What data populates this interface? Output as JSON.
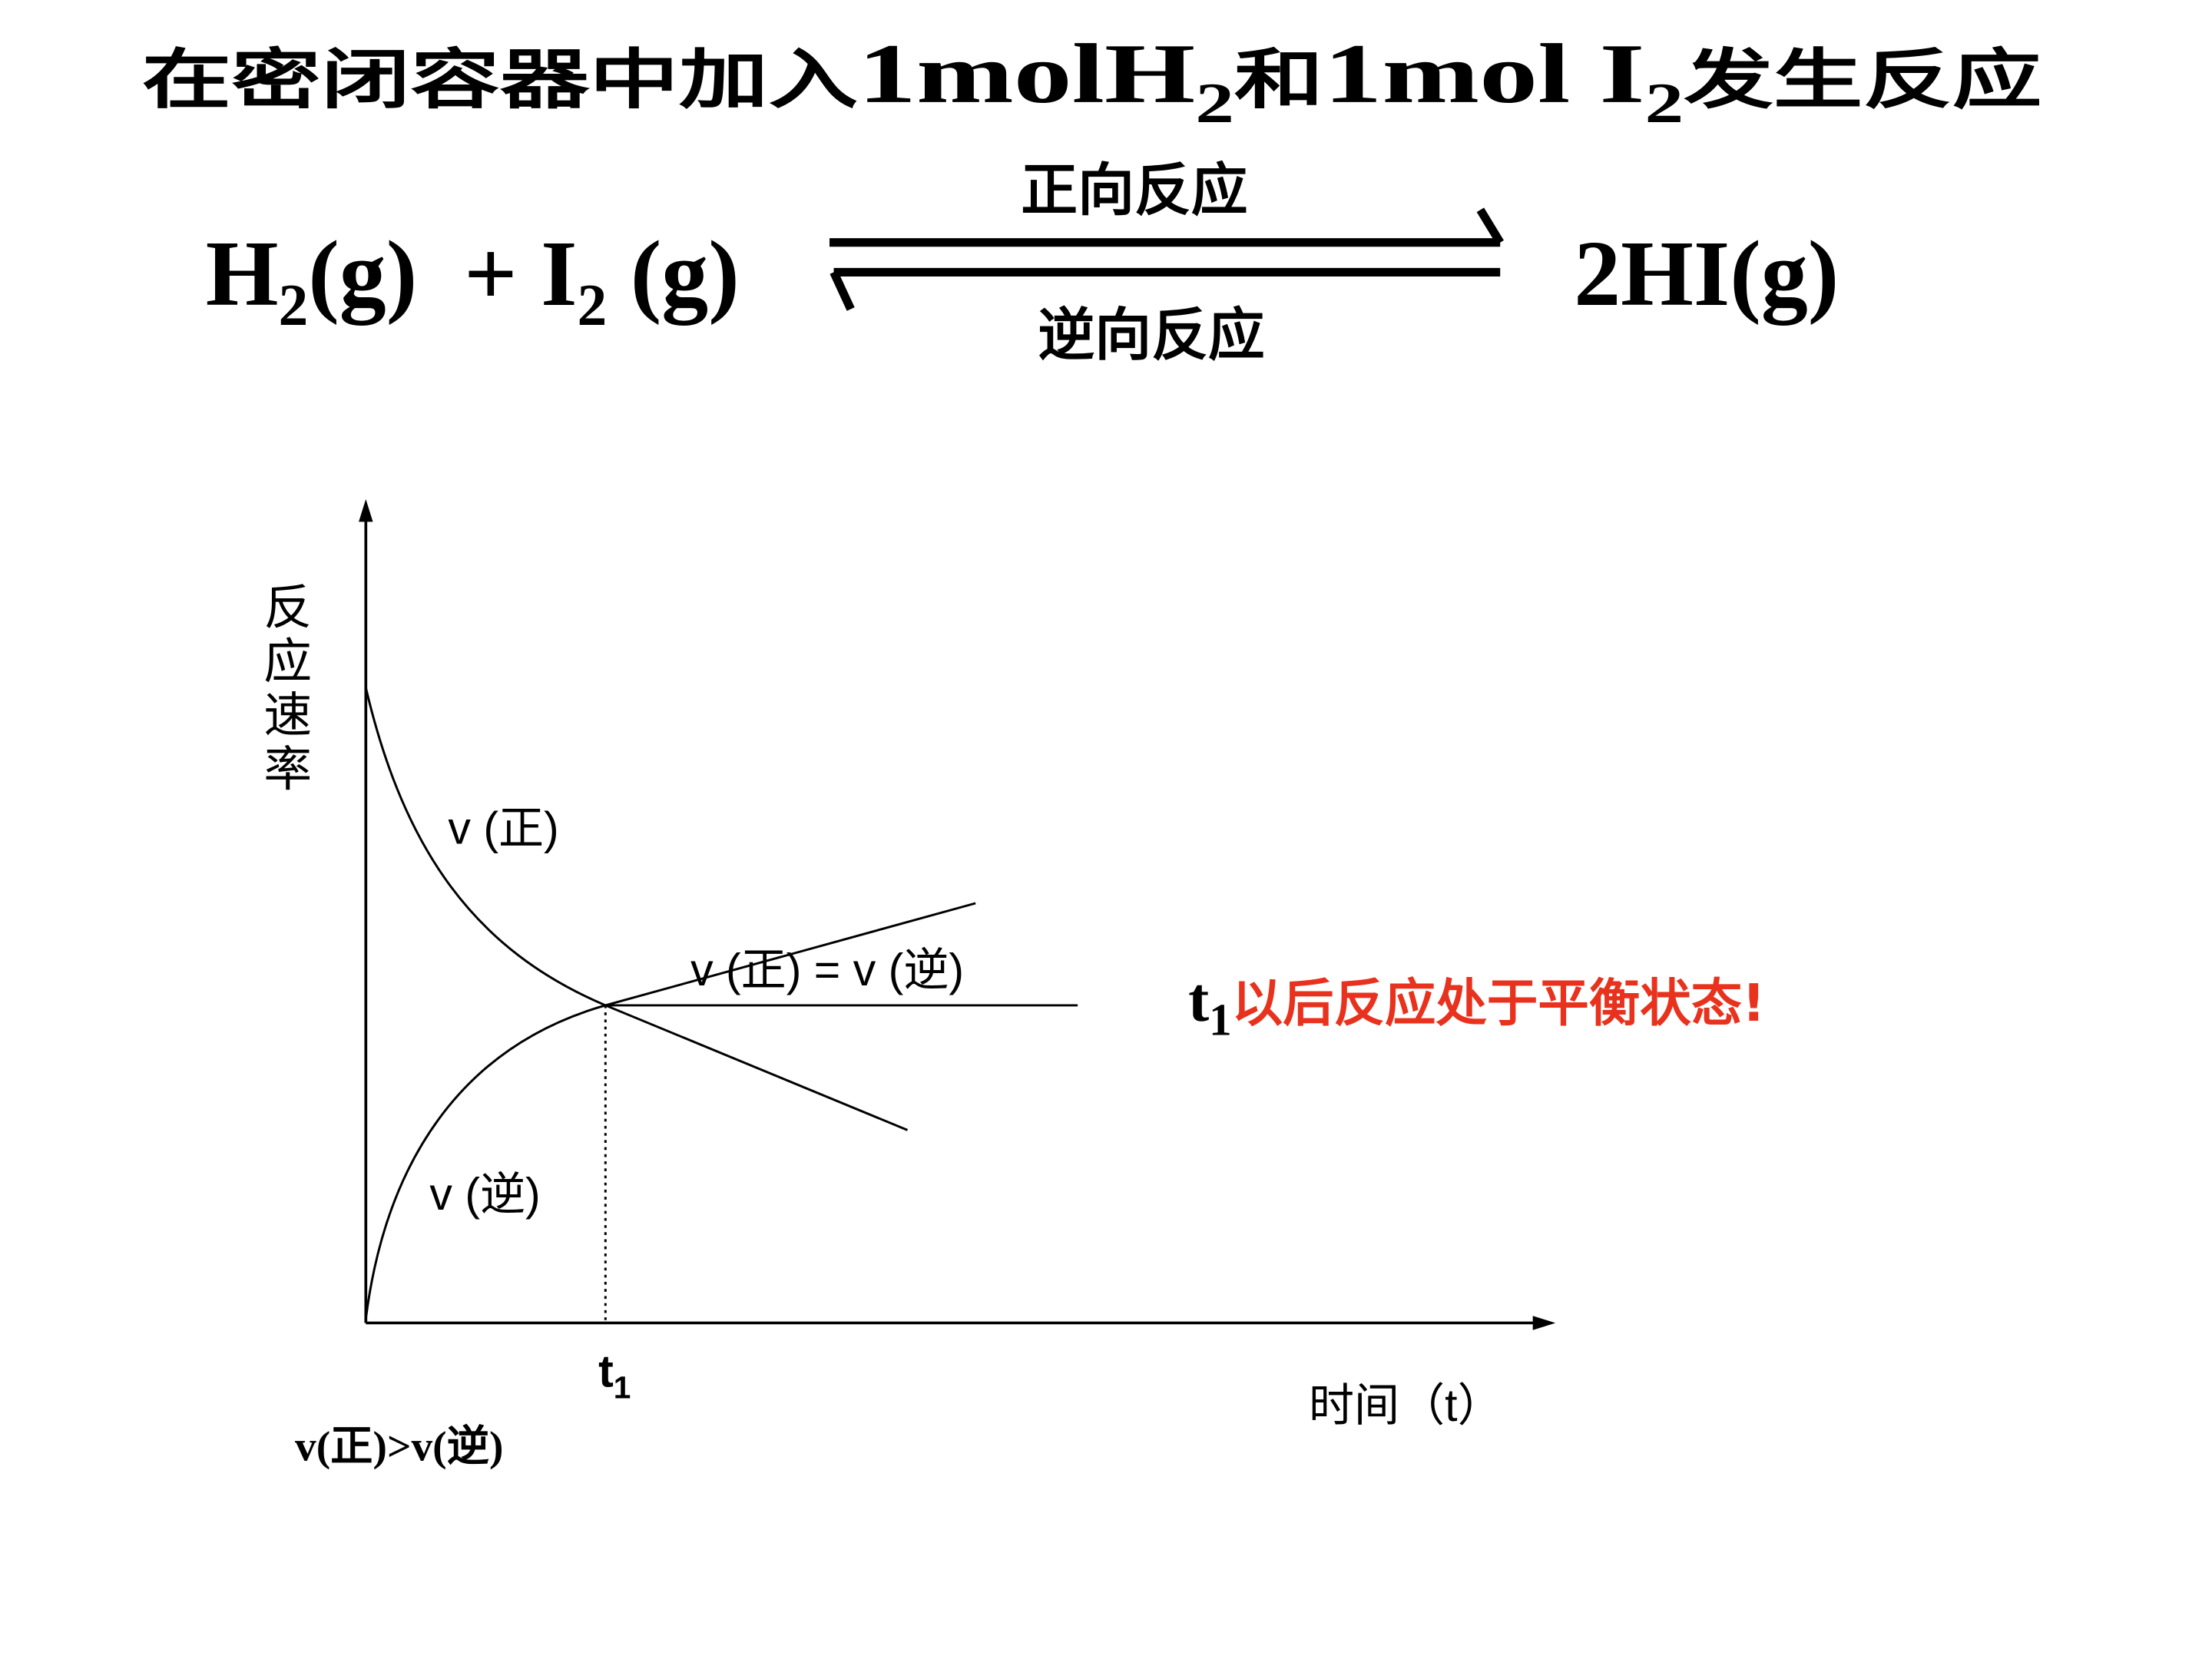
{
  "title": {
    "parts": [
      "在密闭容器中加入",
      "1molH",
      "2",
      "和",
      "1mol I",
      "2",
      "发生反应"
    ]
  },
  "equation": {
    "reactants": [
      "H",
      "2",
      "(g)  + I",
      "2",
      " (g)"
    ],
    "product": "2HI(g)",
    "forward": "正向反应",
    "reverse": "逆向反应"
  },
  "graph": {
    "y_axis_label": [
      "反",
      "应",
      "速",
      "率"
    ],
    "x_axis_label": "时间（t）",
    "forward_label": "v (正)",
    "reverse_label": "v (逆)",
    "equal_label": "v (正) = v (逆)",
    "t1": [
      "t",
      "1"
    ],
    "condition": "v(正)>v(逆)"
  },
  "note": {
    "t1": [
      "t",
      "1"
    ],
    "text": "以后反应处于平衡状态!"
  }
}
